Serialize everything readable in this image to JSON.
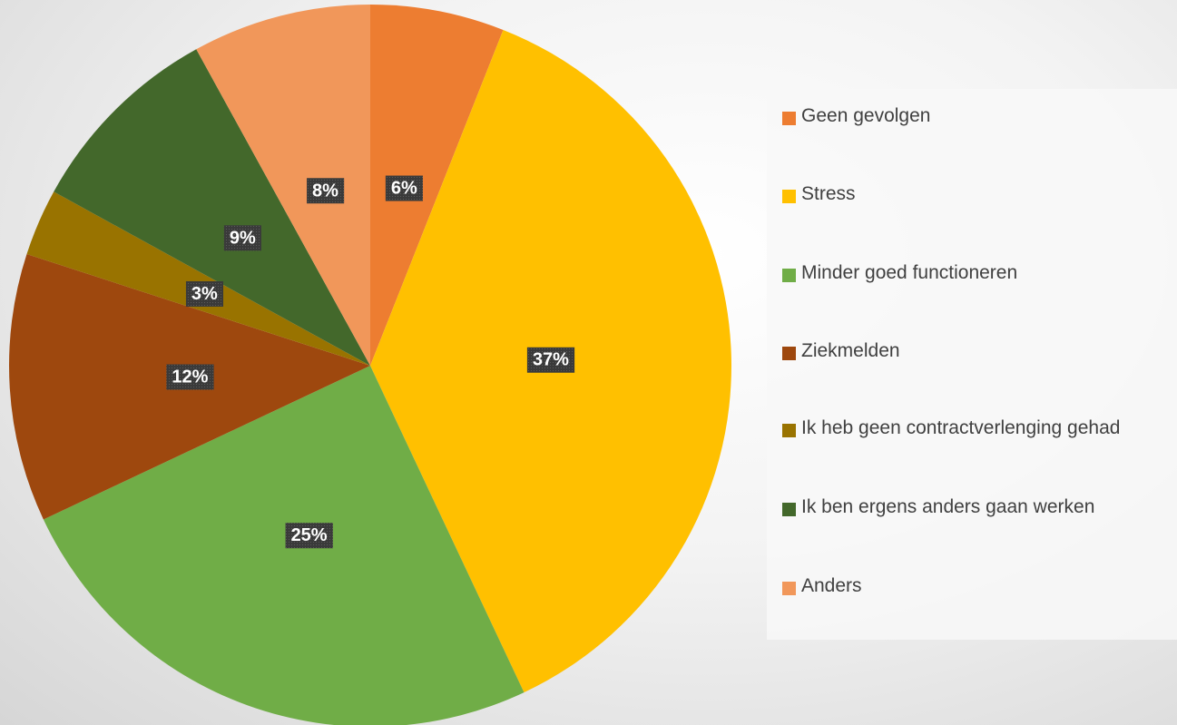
{
  "chart_data": {
    "type": "pie",
    "categories": [
      "Geen gevolgen",
      "Stress",
      "Minder goed functioneren",
      "Ziekmelden",
      "Ik heb geen contractverlenging gehad",
      "Ik ben ergens anders gaan werken",
      "Anders"
    ],
    "values": [
      6,
      37,
      25,
      12,
      3,
      9,
      8
    ],
    "value_labels": [
      "6%",
      "37%",
      "25%",
      "12%",
      "3%",
      "9%",
      "8%"
    ],
    "colors": [
      "#ED7D31",
      "#FFC000",
      "#70AD47",
      "#9E480E",
      "#997300",
      "#43682B",
      "#F1975A"
    ],
    "legend": "right"
  }
}
